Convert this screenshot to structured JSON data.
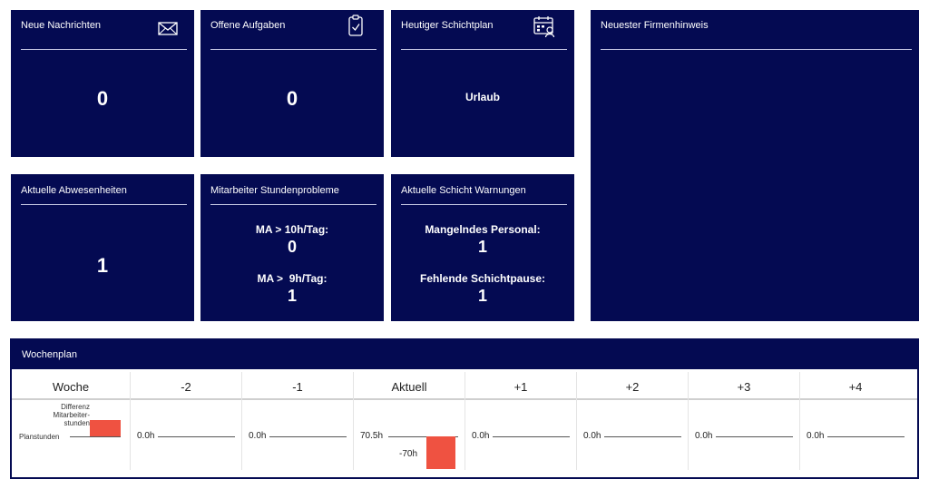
{
  "tiles": {
    "messages": {
      "title": "Neue Nachrichten",
      "value": "0",
      "icon": "envelope-icon"
    },
    "tasks": {
      "title": "Offene Aufgaben",
      "value": "0",
      "icon": "clipboard-check-icon"
    },
    "shift": {
      "title": "Heutiger Schichtplan",
      "value": "Urlaub",
      "icon": "calendar-person-icon"
    },
    "notice": {
      "title": "Neuester Firmenhinweis"
    },
    "absences": {
      "title": "Aktuelle Abwesenheiten",
      "value": "1"
    },
    "hours": {
      "title": "Mitarbeiter Stundenprobleme",
      "rows": [
        {
          "label": "MA > 10h/Tag:",
          "value": "0"
        },
        {
          "label": "MA >  9h/Tag:",
          "value": "1"
        }
      ]
    },
    "warnings": {
      "title": "Aktuelle Schicht Warnungen",
      "rows": [
        {
          "label": "Mangelndes Personal:",
          "value": "1"
        },
        {
          "label": "Fehlende Schichtpause:",
          "value": "1"
        }
      ]
    }
  },
  "plan": {
    "title": "Wochenplan",
    "legend": {
      "header": "Woche",
      "diff_label": "Differenz Mitarbeiter-stunden",
      "planned_label": "Planstunden"
    },
    "weeks": [
      {
        "label": "-2",
        "planned": "0.0h",
        "diff": "",
        "diff_hours": 0
      },
      {
        "label": "-1",
        "planned": "0.0h",
        "diff": "",
        "diff_hours": 0
      },
      {
        "label": "Aktuell",
        "planned": "70.5h",
        "diff": "-70h",
        "diff_hours": -70
      },
      {
        "label": "+1",
        "planned": "0.0h",
        "diff": "",
        "diff_hours": 0
      },
      {
        "label": "+2",
        "planned": "0.0h",
        "diff": "",
        "diff_hours": 0
      },
      {
        "label": "+3",
        "planned": "0.0h",
        "diff": "",
        "diff_hours": 0
      },
      {
        "label": "+4",
        "planned": "0.0h",
        "diff": "",
        "diff_hours": 0
      }
    ],
    "bar_color": "#ef5241"
  },
  "colors": {
    "tile_bg": "#040a52",
    "text": "#ffffff"
  }
}
